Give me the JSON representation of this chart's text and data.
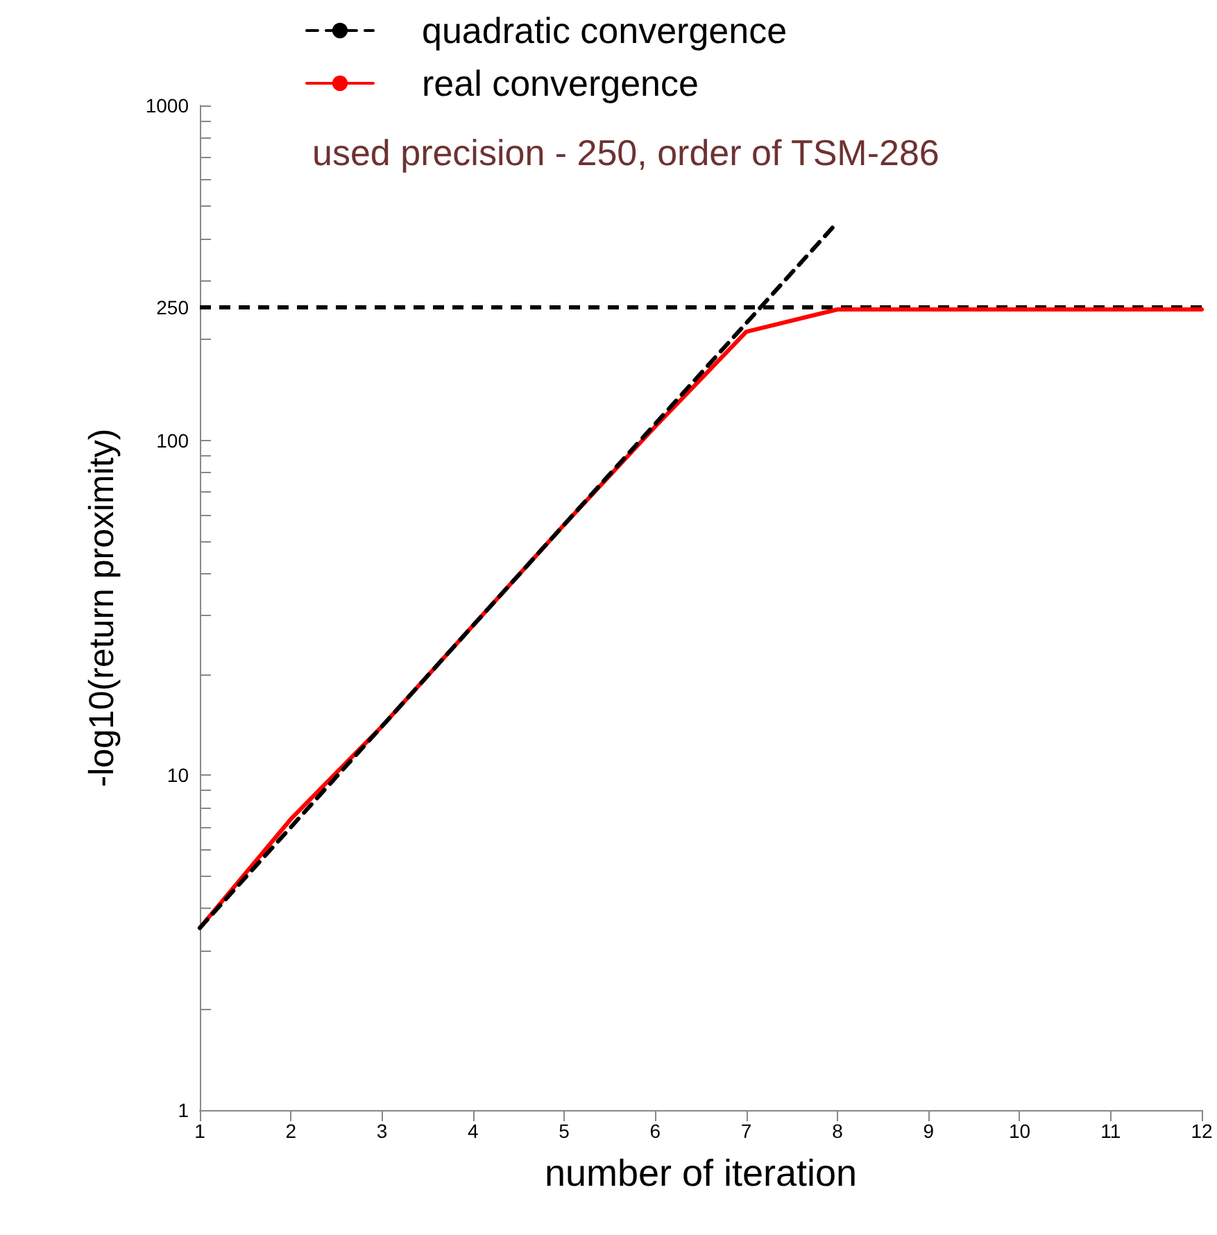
{
  "chart_data": {
    "type": "line",
    "xlabel": "number of iteration",
    "ylabel": "-log10(return proximity)",
    "annotations": [
      "used precision - 250, order of TSM-286"
    ],
    "x": [
      1,
      2,
      3,
      4,
      5,
      6,
      7,
      8,
      9,
      10,
      11,
      12
    ],
    "series": [
      {
        "name": "quadratic convergence",
        "color": "#000000",
        "line_style": "dashed",
        "x": [
          1,
          2,
          3,
          4,
          5,
          6,
          7,
          8
        ],
        "values": [
          3.5,
          7,
          14,
          28,
          56,
          112,
          224,
          448
        ]
      },
      {
        "name": "real convergence",
        "color": "#ff0000",
        "line_style": "solid",
        "values": [
          3.5,
          7.4,
          14,
          28,
          56,
          110,
          211,
          246,
          246,
          246,
          246,
          246
        ]
      }
    ],
    "xlim": [
      1,
      12
    ],
    "xticks": [
      1,
      2,
      3,
      4,
      5,
      6,
      7,
      8,
      9,
      10,
      11,
      12
    ],
    "ylim": [
      1,
      1000
    ],
    "log": "y",
    "yticks": [
      1,
      {
        "value": 2,
        "label": null
      },
      {
        "value": 3,
        "label": null
      },
      {
        "value": 4,
        "label": null
      },
      {
        "value": 5,
        "label": null
      },
      {
        "value": 6,
        "label": null
      },
      {
        "value": 7,
        "label": null
      },
      {
        "value": 8,
        "label": null
      },
      {
        "value": 9,
        "label": null
      },
      10,
      {
        "value": 20,
        "label": null
      },
      {
        "value": 30,
        "label": null
      },
      {
        "value": 40,
        "label": null
      },
      {
        "value": 50,
        "label": null
      },
      {
        "value": 60,
        "label": null
      },
      {
        "value": 70,
        "label": null
      },
      {
        "value": 80,
        "label": null
      },
      {
        "value": 90,
        "label": null
      },
      100,
      {
        "value": 200,
        "label": null
      },
      250,
      {
        "value": 300,
        "label": null
      },
      {
        "value": 400,
        "label": null
      },
      {
        "value": 500,
        "label": null
      },
      {
        "value": 600,
        "label": null
      },
      {
        "value": 700,
        "label": null
      },
      {
        "value": 800,
        "label": null
      },
      {
        "value": 900,
        "label": null
      },
      1000
    ],
    "ref_lines": [
      {
        "axis": "y",
        "value": 250,
        "color": "#000000",
        "line_style": "dashed"
      }
    ],
    "grid": false,
    "legend": "top",
    "marker": "none"
  }
}
